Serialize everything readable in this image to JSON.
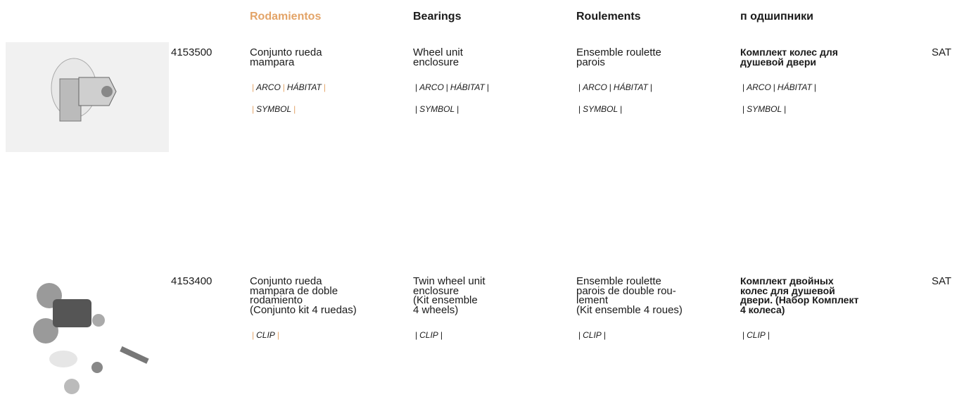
{
  "header": {
    "columns": [
      "Rodamientos",
      "Bearings",
      "Roulements",
      "п одшипники"
    ]
  },
  "rows": [
    {
      "code": "4153500",
      "descriptions": [
        [
          "Conjunto rueda",
          "mampara"
        ],
        [
          "Wheel unit",
          "enclosure"
        ],
        [
          "Ensemble roulette",
          "parois"
        ],
        [
          "Комплект колес для",
          "душевой двери"
        ]
      ],
      "tag_lines": [
        [
          "ARCO",
          "HÁBITAT"
        ],
        [
          "SYMBOL"
        ]
      ],
      "sat": "SAT"
    },
    {
      "code": "4153400",
      "descriptions": [
        [
          "Conjunto rueda",
          "mampara de doble",
          "rodamiento",
          "(Conjunto kit 4 ruedas)"
        ],
        [
          "Twin wheel unit",
          "enclosure",
          "(Kit ensemble",
          "4 wheels)"
        ],
        [
          "Ensemble roulette",
          "parois de double rou-",
          "lement",
          "(Kit ensemble 4 roues)"
        ],
        [
          "Комплект двойных",
          "колес для душевой",
          "двери. (Набор Комплект",
          "4 колеса)"
        ]
      ],
      "tag_lines": [
        [
          "CLIP"
        ]
      ],
      "sat": "SAT"
    }
  ]
}
